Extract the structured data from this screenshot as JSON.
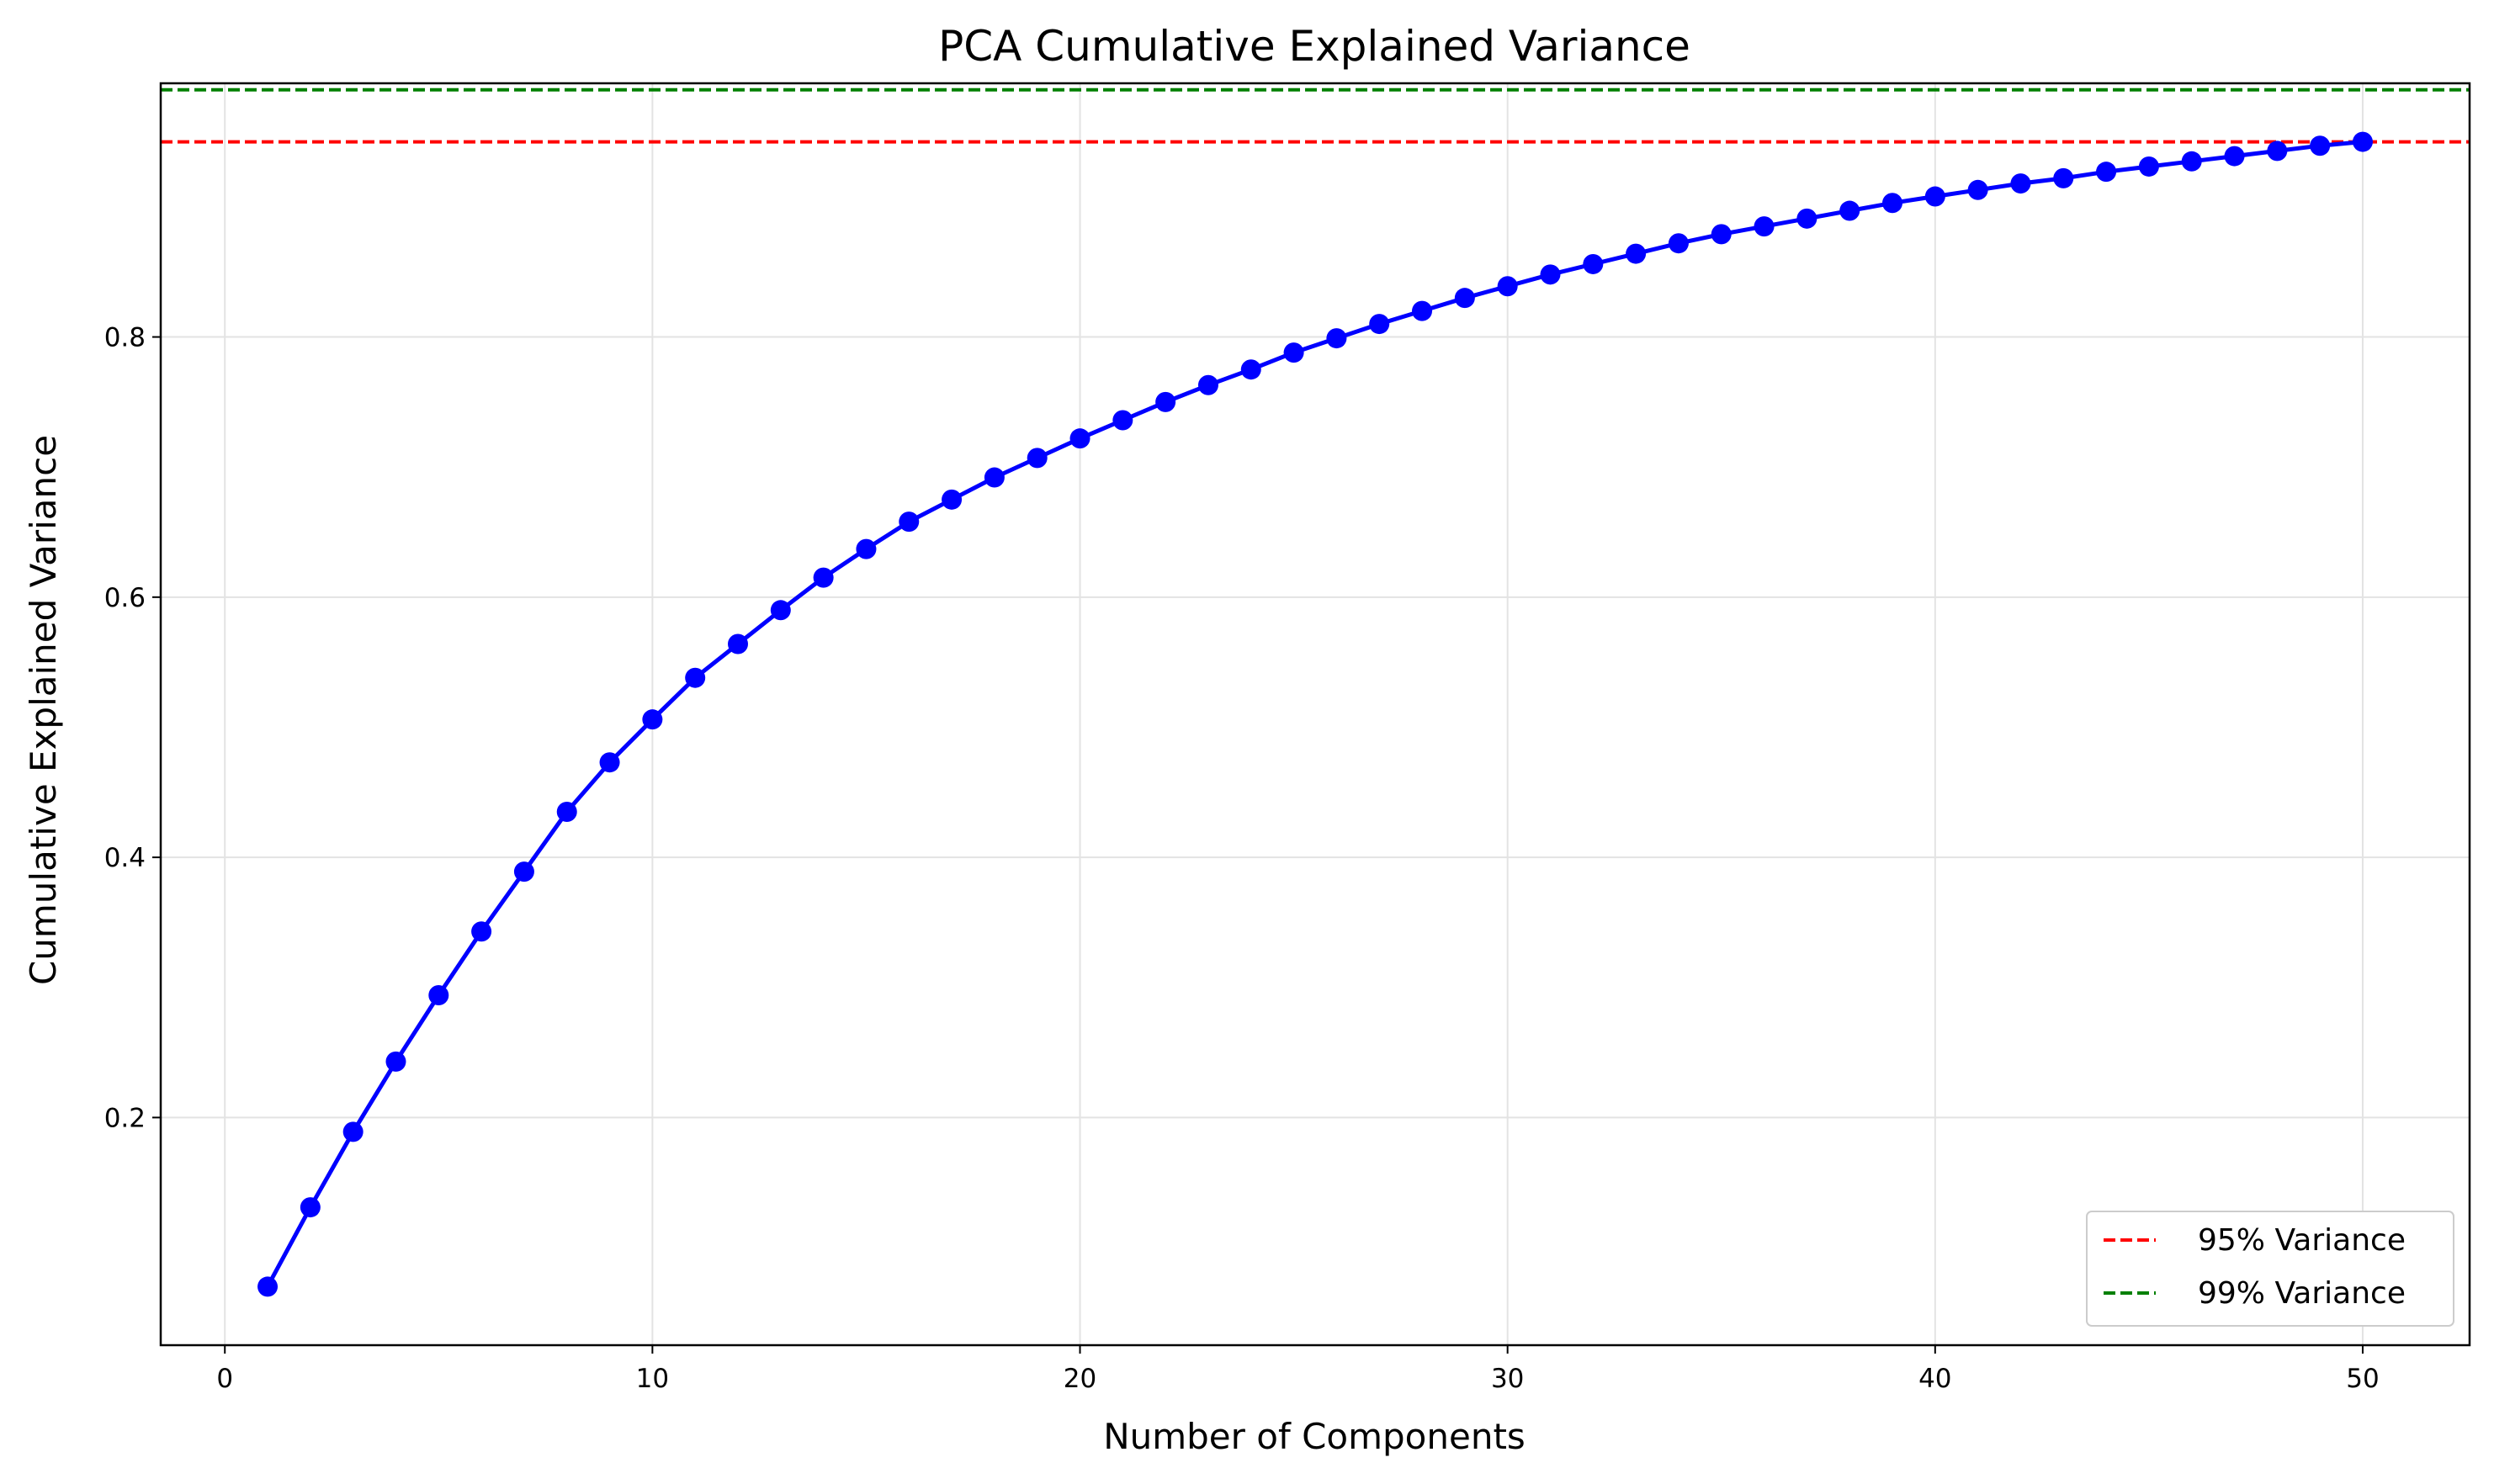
{
  "chart_data": {
    "type": "line",
    "title": "PCA Cumulative Explained Variance",
    "xlabel": "Number of Components",
    "ylabel": "Cumulative Explained Variance",
    "xlim": [
      -1.5,
      52.5
    ],
    "ylim": [
      0.025,
      0.995
    ],
    "xticks": [
      0,
      10,
      20,
      30,
      40,
      50
    ],
    "xtick_labels": [
      "0",
      "10",
      "20",
      "30",
      "40",
      "50"
    ],
    "yticks": [
      0.2,
      0.4,
      0.6,
      0.8
    ],
    "ytick_labels": [
      "0.2",
      "0.4",
      "0.6",
      "0.8"
    ],
    "grid": true,
    "legend_position": "lower-right",
    "series": [
      {
        "color": "#0000ff",
        "marker": "circle",
        "x": [
          1,
          2,
          3,
          4,
          5,
          6,
          7,
          8,
          9,
          10,
          11,
          12,
          13,
          14,
          15,
          16,
          17,
          18,
          19,
          20,
          21,
          22,
          23,
          24,
          25,
          26,
          27,
          28,
          29,
          30,
          31,
          32,
          33,
          34,
          35,
          36,
          37,
          38,
          39,
          40,
          41,
          42,
          43,
          44,
          45,
          46,
          47,
          48,
          49,
          50
        ],
        "y": [
          0.07,
          0.131,
          0.189,
          0.243,
          0.294,
          0.343,
          0.389,
          0.435,
          0.473,
          0.506,
          0.538,
          0.564,
          0.59,
          0.615,
          0.637,
          0.658,
          0.675,
          0.692,
          0.707,
          0.722,
          0.736,
          0.75,
          0.763,
          0.775,
          0.788,
          0.799,
          0.81,
          0.82,
          0.83,
          0.839,
          0.848,
          0.856,
          0.864,
          0.872,
          0.879,
          0.885,
          0.891,
          0.897,
          0.903,
          0.908,
          0.913,
          0.918,
          0.922,
          0.927,
          0.931,
          0.935,
          0.939,
          0.943,
          0.947,
          0.95
        ]
      }
    ],
    "reference_lines": [
      {
        "name": "95% Variance",
        "y": 0.95,
        "color": "#ff0000",
        "style": "dashed"
      },
      {
        "name": "99% Variance",
        "y": 0.99,
        "color": "#008000",
        "style": "dashed"
      }
    ]
  }
}
